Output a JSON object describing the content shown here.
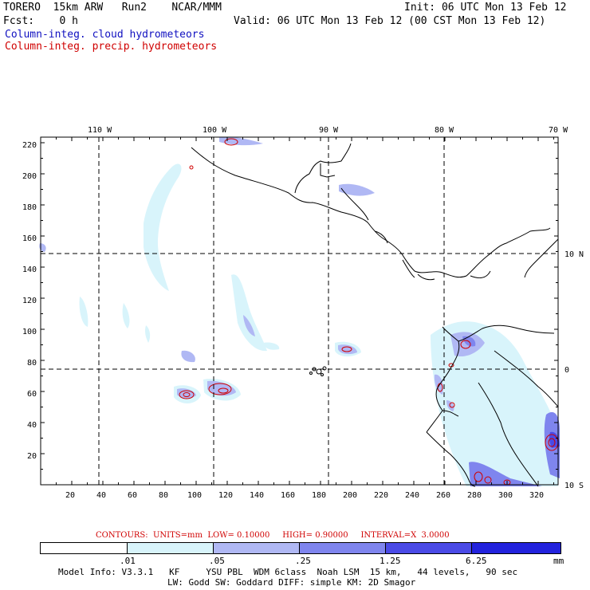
{
  "header": {
    "model": "TORERO  15km ARW   Run2    NCAR/MMM",
    "init": "Init: 06 UTC Mon 13 Feb 12",
    "fcst": "Fcst:    0 h",
    "valid": "Valid: 06 UTC Mon 13 Feb 12 (00 CST Mon 13 Feb 12)",
    "field1": "Column-integ. cloud hydrometeors",
    "field2": "Column-integ. precip. hydrometeors"
  },
  "map": {
    "lon_labels": [
      "110 W",
      "100 W",
      "90 W",
      "80 W",
      "70 W"
    ],
    "lat_labels": [
      "10 N",
      "0",
      "10 S"
    ],
    "y_ticks": [
      "220",
      "200",
      "180",
      "160",
      "140",
      "120",
      "100",
      "80",
      "60",
      "40",
      "20"
    ],
    "x_ticks": [
      "20",
      "40",
      "60",
      "80",
      "100",
      "120",
      "140",
      "160",
      "180",
      "200",
      "220",
      "240",
      "260",
      "280",
      "300",
      "320"
    ]
  },
  "contours_info": "CONTOURS:  UNITS=mm  LOW= 0.10000     HIGH= 0.90000     INTERVAL=X  3.0000",
  "legend": {
    "colors": [
      "#ffffff",
      "#d8f4fb",
      "#b0b8f4",
      "#7f85ee",
      "#4a4ae6",
      "#2222dd"
    ],
    "labels": [
      ".01",
      ".05",
      ".25",
      "1.25",
      "6.25"
    ],
    "unit": "mm"
  },
  "footer": {
    "line1": "Model Info: V3.3.1   KF     YSU PBL  WDM 6class  Noah LSM  15 km,   44 levels,   90 sec",
    "line2": "LW: Godd SW: Goddard DIFF: simple KM: 2D Smagor"
  }
}
